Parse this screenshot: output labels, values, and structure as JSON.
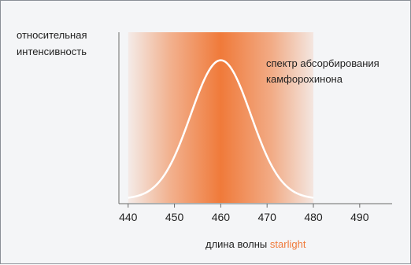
{
  "chart_data": {
    "type": "line",
    "ylabel_line1": "относительная",
    "ylabel_line2": "интенсивность",
    "xlabel": "длина волны",
    "xlabel_highlight": "starlight",
    "highlight_color": "#f07a3a",
    "curve_label_line1": "спектр абсорбирования",
    "curve_label_line2": "камфорохинона",
    "band": {
      "from": 440,
      "to": 480,
      "peak": 460,
      "color": "#f07a3a"
    },
    "xlim": [
      438,
      497
    ],
    "xticks": [
      440,
      450,
      460,
      470,
      480,
      490
    ],
    "curve": {
      "mean": 460,
      "sigma": 6.5
    },
    "series": [
      {
        "x": [
          440,
          445,
          450,
          455,
          458,
          460,
          462,
          465,
          470,
          475,
          480
        ],
        "y": [
          0.01,
          0.07,
          0.3,
          0.74,
          0.95,
          1.0,
          0.95,
          0.74,
          0.3,
          0.07,
          0.01
        ]
      }
    ],
    "ylim": [
      0,
      1.1
    ],
    "grid": false,
    "curve_color": "#ffffff"
  }
}
